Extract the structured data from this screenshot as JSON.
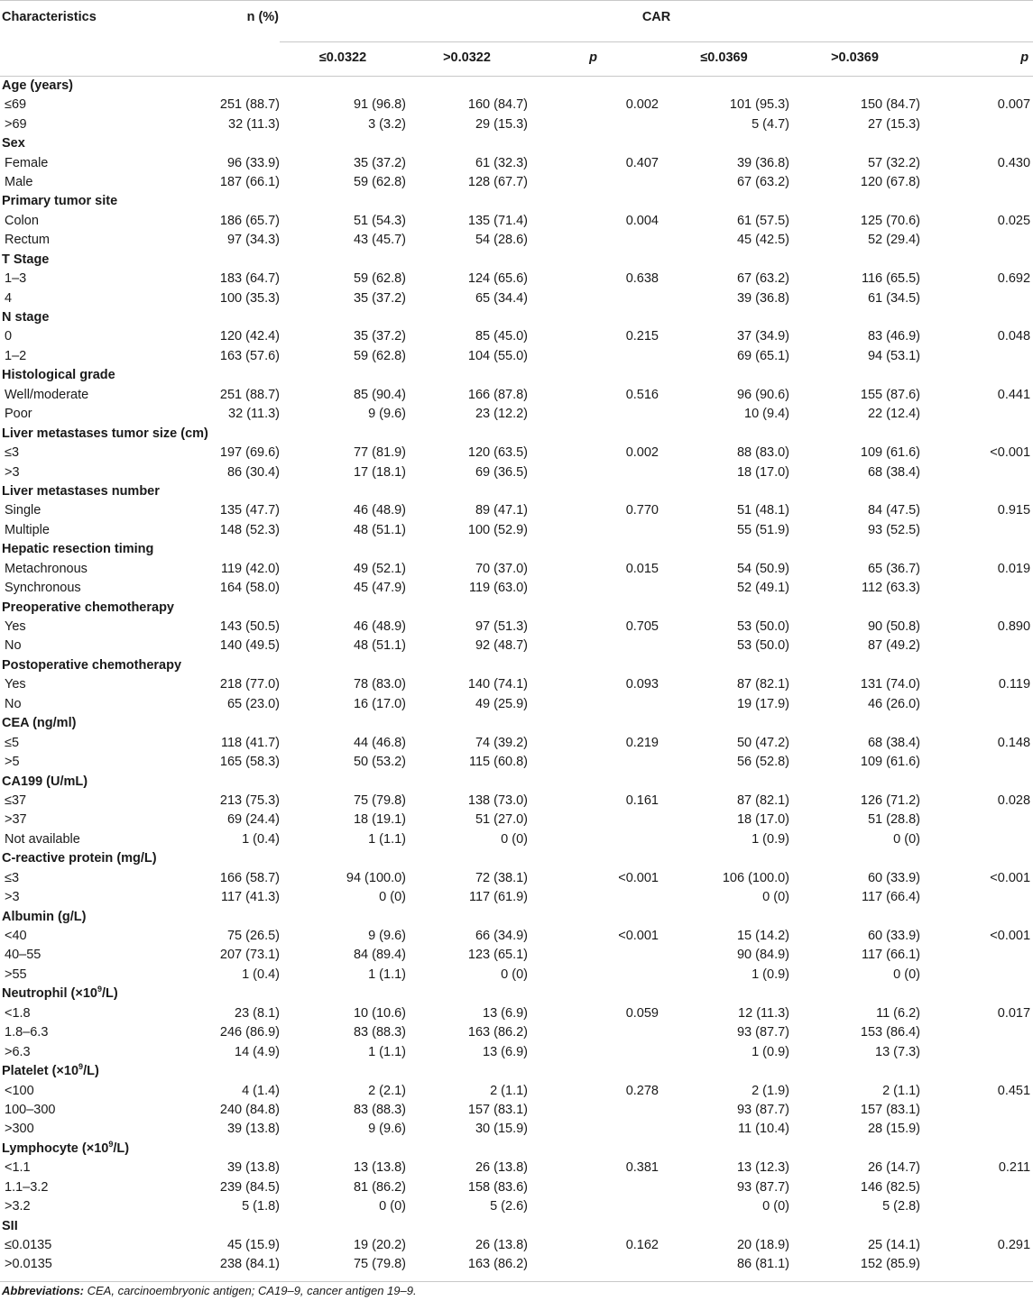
{
  "header": {
    "characteristics": "Characteristics",
    "n_pct": "n (%)",
    "car": "CAR",
    "col_le1": "≤0.0322",
    "col_gt1": ">0.0322",
    "col_p1": "p",
    "col_le2": "≤0.0369",
    "col_gt2": ">0.0369",
    "col_p2": "p"
  },
  "rows": [
    {
      "group": true,
      "label": "Age (years)"
    },
    {
      "label": "≤69",
      "n": "251 (88.7)",
      "a1": "91 (96.8)",
      "a2": "160 (84.7)",
      "p1": "0.002",
      "b1": "101 (95.3)",
      "b2": "150 (84.7)",
      "p2": "0.007"
    },
    {
      "label": ">69",
      "n": "32 (11.3)",
      "a1": "3 (3.2)",
      "a2": "29 (15.3)",
      "p1": "",
      "b1": "5 (4.7)",
      "b2": "27 (15.3)",
      "p2": ""
    },
    {
      "group": true,
      "label": "Sex"
    },
    {
      "label": "Female",
      "n": "96 (33.9)",
      "a1": "35 (37.2)",
      "a2": "61 (32.3)",
      "p1": "0.407",
      "b1": "39 (36.8)",
      "b2": "57 (32.2)",
      "p2": "0.430"
    },
    {
      "label": "Male",
      "n": "187 (66.1)",
      "a1": "59 (62.8)",
      "a2": "128 (67.7)",
      "p1": "",
      "b1": "67 (63.2)",
      "b2": "120 (67.8)",
      "p2": ""
    },
    {
      "group": true,
      "label": "Primary tumor site"
    },
    {
      "label": "Colon",
      "n": "186 (65.7)",
      "a1": "51 (54.3)",
      "a2": "135 (71.4)",
      "p1": "0.004",
      "b1": "61 (57.5)",
      "b2": "125 (70.6)",
      "p2": "0.025"
    },
    {
      "label": "Rectum",
      "n": "97 (34.3)",
      "a1": "43 (45.7)",
      "a2": "54 (28.6)",
      "p1": "",
      "b1": "45 (42.5)",
      "b2": "52 (29.4)",
      "p2": ""
    },
    {
      "group": true,
      "label": "T Stage"
    },
    {
      "label": "1–3",
      "n": "183 (64.7)",
      "a1": "59 (62.8)",
      "a2": "124 (65.6)",
      "p1": "0.638",
      "b1": "67 (63.2)",
      "b2": "116 (65.5)",
      "p2": "0.692"
    },
    {
      "label": "4",
      "n": "100 (35.3)",
      "a1": "35 (37.2)",
      "a2": "65 (34.4)",
      "p1": "",
      "b1": "39 (36.8)",
      "b2": "61 (34.5)",
      "p2": ""
    },
    {
      "group": true,
      "label": "N stage"
    },
    {
      "label": "0",
      "n": "120 (42.4)",
      "a1": "35 (37.2)",
      "a2": "85 (45.0)",
      "p1": "0.215",
      "b1": "37 (34.9)",
      "b2": "83 (46.9)",
      "p2": "0.048"
    },
    {
      "label": "1–2",
      "n": "163 (57.6)",
      "a1": "59 (62.8)",
      "a2": "104 (55.0)",
      "p1": "",
      "b1": "69 (65.1)",
      "b2": "94 (53.1)",
      "p2": ""
    },
    {
      "group": true,
      "label": "Histological grade"
    },
    {
      "label": "Well/moderate",
      "n": "251 (88.7)",
      "a1": "85 (90.4)",
      "a2": "166 (87.8)",
      "p1": "0.516",
      "b1": "96 (90.6)",
      "b2": "155 (87.6)",
      "p2": "0.441"
    },
    {
      "label": "Poor",
      "n": "32 (11.3)",
      "a1": "9 (9.6)",
      "a2": "23 (12.2)",
      "p1": "",
      "b1": "10 (9.4)",
      "b2": "22 (12.4)",
      "p2": ""
    },
    {
      "group": true,
      "label": "Liver metastases tumor size (cm)"
    },
    {
      "label": "≤3",
      "n": "197 (69.6)",
      "a1": "77 (81.9)",
      "a2": "120 (63.5)",
      "p1": "0.002",
      "b1": "88 (83.0)",
      "b2": "109 (61.6)",
      "p2": "<0.001"
    },
    {
      "label": ">3",
      "n": "86 (30.4)",
      "a1": "17 (18.1)",
      "a2": "69 (36.5)",
      "p1": "",
      "b1": "18 (17.0)",
      "b2": "68 (38.4)",
      "p2": ""
    },
    {
      "group": true,
      "label": "Liver metastases number"
    },
    {
      "label": "Single",
      "n": "135 (47.7)",
      "a1": "46 (48.9)",
      "a2": "89 (47.1)",
      "p1": "0.770",
      "b1": "51 (48.1)",
      "b2": "84 (47.5)",
      "p2": "0.915"
    },
    {
      "label": "Multiple",
      "n": "148 (52.3)",
      "a1": "48 (51.1)",
      "a2": "100 (52.9)",
      "p1": "",
      "b1": "55 (51.9)",
      "b2": "93 (52.5)",
      "p2": ""
    },
    {
      "group": true,
      "label": "Hepatic resection timing"
    },
    {
      "label": "Metachronous",
      "n": "119 (42.0)",
      "a1": "49 (52.1)",
      "a2": "70 (37.0)",
      "p1": "0.015",
      "b1": "54 (50.9)",
      "b2": "65 (36.7)",
      "p2": "0.019"
    },
    {
      "label": "Synchronous",
      "n": "164 (58.0)",
      "a1": "45 (47.9)",
      "a2": "119 (63.0)",
      "p1": "",
      "b1": "52 (49.1)",
      "b2": "112 (63.3)",
      "p2": ""
    },
    {
      "group": true,
      "label": "Preoperative chemotherapy"
    },
    {
      "label": "Yes",
      "n": "143 (50.5)",
      "a1": "46 (48.9)",
      "a2": "97 (51.3)",
      "p1": "0.705",
      "b1": "53 (50.0)",
      "b2": "90 (50.8)",
      "p2": "0.890"
    },
    {
      "label": "No",
      "n": "140 (49.5)",
      "a1": "48 (51.1)",
      "a2": "92 (48.7)",
      "p1": "",
      "b1": "53 (50.0)",
      "b2": "87 (49.2)",
      "p2": ""
    },
    {
      "group": true,
      "label": "Postoperative chemotherapy"
    },
    {
      "label": "Yes",
      "n": "218 (77.0)",
      "a1": "78 (83.0)",
      "a2": "140 (74.1)",
      "p1": "0.093",
      "b1": "87 (82.1)",
      "b2": "131 (74.0)",
      "p2": "0.119"
    },
    {
      "label": "No",
      "n": "65 (23.0)",
      "a1": "16 (17.0)",
      "a2": "49 (25.9)",
      "p1": "",
      "b1": "19 (17.9)",
      "b2": "46 (26.0)",
      "p2": ""
    },
    {
      "group": true,
      "label": "CEA (ng/ml)"
    },
    {
      "label": "≤5",
      "n": "118 (41.7)",
      "a1": "44 (46.8)",
      "a2": "74 (39.2)",
      "p1": "0.219",
      "b1": "50 (47.2)",
      "b2": "68 (38.4)",
      "p2": "0.148"
    },
    {
      "label": ">5",
      "n": "165 (58.3)",
      "a1": "50 (53.2)",
      "a2": "115 (60.8)",
      "p1": "",
      "b1": "56 (52.8)",
      "b2": "109 (61.6)",
      "p2": ""
    },
    {
      "group": true,
      "label": "CA199 (U/mL)"
    },
    {
      "label": "≤37",
      "n": "213 (75.3)",
      "a1": "75 (79.8)",
      "a2": "138 (73.0)",
      "p1": "0.161",
      "b1": "87 (82.1)",
      "b2": "126 (71.2)",
      "p2": "0.028"
    },
    {
      "label": ">37",
      "n": "69 (24.4)",
      "a1": "18 (19.1)",
      "a2": "51 (27.0)",
      "p1": "",
      "b1": "18 (17.0)",
      "b2": "51 (28.8)",
      "p2": ""
    },
    {
      "label": "Not available",
      "n": "1 (0.4)",
      "a1": "1 (1.1)",
      "a2": "0 (0)",
      "p1": "",
      "b1": "1 (0.9)",
      "b2": "0 (0)",
      "p2": ""
    },
    {
      "group": true,
      "label": "C-reactive protein (mg/L)"
    },
    {
      "label": "≤3",
      "n": "166 (58.7)",
      "a1": "94 (100.0)",
      "a2": "72 (38.1)",
      "p1": "<0.001",
      "b1": "106 (100.0)",
      "b2": "60 (33.9)",
      "p2": "<0.001"
    },
    {
      "label": ">3",
      "n": "117 (41.3)",
      "a1": "0 (0)",
      "a2": "117 (61.9)",
      "p1": "",
      "b1": "0 (0)",
      "b2": "117 (66.4)",
      "p2": ""
    },
    {
      "group": true,
      "label": "Albumin (g/L)"
    },
    {
      "label": "<40",
      "n": "75 (26.5)",
      "a1": "9 (9.6)",
      "a2": "66 (34.9)",
      "p1": "<0.001",
      "b1": "15 (14.2)",
      "b2": "60 (33.9)",
      "p2": "<0.001"
    },
    {
      "label": "40–55",
      "n": "207 (73.1)",
      "a1": "84 (89.4)",
      "a2": "123 (65.1)",
      "p1": "",
      "b1": "90 (84.9)",
      "b2": "117 (66.1)",
      "p2": ""
    },
    {
      "label": ">55",
      "n": "1 (0.4)",
      "a1": "1 (1.1)",
      "a2": "0 (0)",
      "p1": "",
      "b1": "1 (0.9)",
      "b2": "0 (0)",
      "p2": ""
    },
    {
      "group": true,
      "label": "Neutrophil (×10",
      "sup": "9",
      "tail": "/L)"
    },
    {
      "label": "<1.8",
      "n": "23 (8.1)",
      "a1": "10 (10.6)",
      "a2": "13 (6.9)",
      "p1": "0.059",
      "b1": "12 (11.3)",
      "b2": "11 (6.2)",
      "p2": "0.017"
    },
    {
      "label": "1.8–6.3",
      "n": "246 (86.9)",
      "a1": "83 (88.3)",
      "a2": "163 (86.2)",
      "p1": "",
      "b1": "93 (87.7)",
      "b2": "153 (86.4)",
      "p2": ""
    },
    {
      "label": ">6.3",
      "n": "14 (4.9)",
      "a1": "1 (1.1)",
      "a2": "13 (6.9)",
      "p1": "",
      "b1": "1 (0.9)",
      "b2": "13 (7.3)",
      "p2": ""
    },
    {
      "group": true,
      "label": "Platelet (×10",
      "sup": "9",
      "tail": "/L)"
    },
    {
      "label": "<100",
      "n": "4 (1.4)",
      "a1": "2 (2.1)",
      "a2": "2 (1.1)",
      "p1": "0.278",
      "b1": "2 (1.9)",
      "b2": "2 (1.1)",
      "p2": "0.451"
    },
    {
      "label": "100–300",
      "n": "240 (84.8)",
      "a1": "83 (88.3)",
      "a2": "157 (83.1)",
      "p1": "",
      "b1": "93 (87.7)",
      "b2": "157 (83.1)",
      "p2": ""
    },
    {
      "label": ">300",
      "n": "39 (13.8)",
      "a1": "9 (9.6)",
      "a2": "30 (15.9)",
      "p1": "",
      "b1": "11 (10.4)",
      "b2": "28 (15.9)",
      "p2": ""
    },
    {
      "group": true,
      "label": "Lymphocyte (×10",
      "sup": "9",
      "tail": "/L)"
    },
    {
      "label": "<1.1",
      "n": "39 (13.8)",
      "a1": "13 (13.8)",
      "a2": "26 (13.8)",
      "p1": "0.381",
      "b1": "13 (12.3)",
      "b2": "26 (14.7)",
      "p2": "0.211"
    },
    {
      "label": "1.1–3.2",
      "n": "239 (84.5)",
      "a1": "81 (86.2)",
      "a2": "158 (83.6)",
      "p1": "",
      "b1": "93 (87.7)",
      "b2": "146 (82.5)",
      "p2": ""
    },
    {
      "label": ">3.2",
      "n": "5 (1.8)",
      "a1": "0 (0)",
      "a2": "5 (2.6)",
      "p1": "",
      "b1": "0 (0)",
      "b2": "5 (2.8)",
      "p2": ""
    },
    {
      "group": true,
      "label": "SII"
    },
    {
      "label": "≤0.0135",
      "n": "45 (15.9)",
      "a1": "19 (20.2)",
      "a2": "26 (13.8)",
      "p1": "0.162",
      "b1": "20 (18.9)",
      "b2": "25 (14.1)",
      "p2": "0.291"
    },
    {
      "label": ">0.0135",
      "n": "238 (84.1)",
      "a1": "75 (79.8)",
      "a2": "163 (86.2)",
      "p1": "",
      "b1": "86 (81.1)",
      "b2": "152 (85.9)",
      "p2": ""
    }
  ],
  "footnote": {
    "label": "Abbreviations:",
    "text": " CEA, carcinoembryonic antigen; CA19–9, cancer antigen 19–9."
  }
}
